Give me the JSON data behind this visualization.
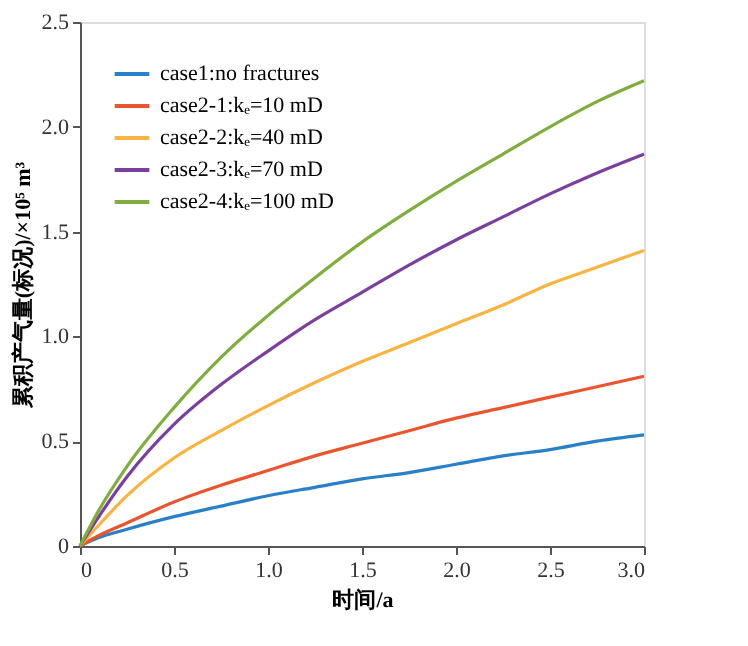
{
  "chart_data": {
    "type": "line",
    "xlabel": "时间/a",
    "ylabel": "累积产气量(标况)/×10⁵ m³",
    "x": [
      0,
      0.1,
      0.25,
      0.5,
      0.75,
      1.0,
      1.25,
      1.5,
      1.75,
      2.0,
      2.25,
      2.5,
      2.75,
      3.0
    ],
    "series": [
      {
        "name": "case1:no fractures",
        "color": "#2a7fc9",
        "values": [
          0,
          0.04,
          0.08,
          0.14,
          0.19,
          0.24,
          0.28,
          0.32,
          0.35,
          0.39,
          0.43,
          0.46,
          0.5,
          0.53
        ]
      },
      {
        "name": "case2-1:kₑ=10 mD",
        "color": "#e8552f",
        "values": [
          0,
          0.05,
          0.11,
          0.21,
          0.29,
          0.36,
          0.43,
          0.49,
          0.55,
          0.61,
          0.66,
          0.71,
          0.76,
          0.81
        ]
      },
      {
        "name": "case2-2:kₑ=40 mD",
        "color": "#f7b443",
        "values": [
          0,
          0.1,
          0.24,
          0.42,
          0.55,
          0.67,
          0.78,
          0.88,
          0.97,
          1.06,
          1.15,
          1.25,
          1.33,
          1.41
        ]
      },
      {
        "name": "case2-3:kₑ=70 mD",
        "color": "#7b3f9e",
        "values": [
          0,
          0.14,
          0.33,
          0.58,
          0.77,
          0.93,
          1.08,
          1.21,
          1.34,
          1.46,
          1.57,
          1.68,
          1.78,
          1.87
        ]
      },
      {
        "name": "case2-4:kₑ=100 mD",
        "color": "#7fad3f",
        "values": [
          0,
          0.17,
          0.38,
          0.66,
          0.9,
          1.1,
          1.28,
          1.45,
          1.6,
          1.74,
          1.87,
          2.0,
          2.12,
          2.22
        ]
      }
    ],
    "xlim": [
      0,
      3.0
    ],
    "xticks": [
      0,
      {
        "value": 0.5,
        "label": "0.5"
      },
      {
        "value": 1,
        "label": "1.0"
      },
      {
        "value": 1.5,
        "label": "1.5"
      },
      {
        "value": 2,
        "label": "2.0"
      },
      {
        "value": 2.5,
        "label": "2.5"
      },
      {
        "value": 3,
        "label": "3.0"
      }
    ],
    "ylim": [
      0,
      2.5
    ],
    "yticks": [
      0,
      {
        "value": 0.5,
        "label": "0.5"
      },
      {
        "value": 1,
        "label": "1.0"
      },
      {
        "value": 1.5,
        "label": "1.5"
      },
      {
        "value": 2,
        "label": "2.0"
      },
      {
        "value": 2.5,
        "label": "2.5"
      }
    ],
    "legend": "top left",
    "grid": false,
    "marker": "none",
    "line_style": "solid"
  }
}
